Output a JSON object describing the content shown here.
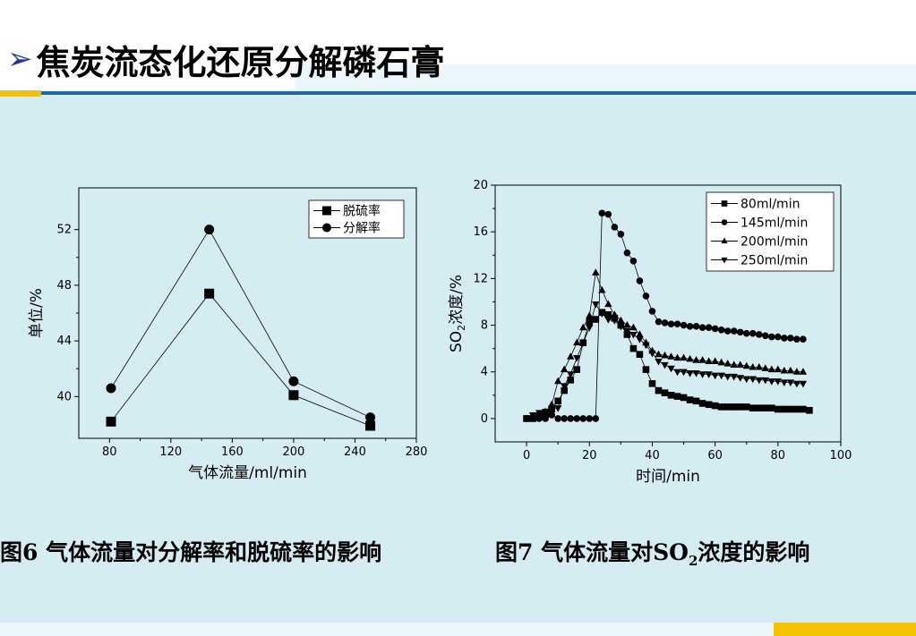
{
  "slide": {
    "title": "焦炭流态化还原分解磷石膏",
    "bullet": "➢"
  },
  "captions": {
    "fig6": "图6 气体流量对分解率和脱硫率的影响",
    "fig7_prefix": "图7 气体流量对SO",
    "fig7_sub": "2",
    "fig7_suffix": "浓度的影响"
  },
  "colors": {
    "background": "#d6ecf3",
    "accent_gold": "#f5c200",
    "accent_blue": "#1f6a9e",
    "series": "#000000"
  },
  "chart_data": [
    {
      "type": "line",
      "xlabel": "气体流量/ml/min",
      "ylabel": "单位/%",
      "xlim": [
        60,
        280
      ],
      "ylim": [
        37,
        55
      ],
      "xticks": [
        80,
        120,
        160,
        200,
        240,
        280
      ],
      "yticks": [
        40,
        44,
        48,
        52
      ],
      "legend_position": "top-right",
      "series": [
        {
          "name": "脱硫率",
          "marker": "square",
          "x": [
            81,
            145,
            200,
            250
          ],
          "y": [
            38.2,
            47.4,
            40.1,
            37.9
          ]
        },
        {
          "name": "分解率",
          "marker": "circle",
          "x": [
            81,
            145,
            200,
            250
          ],
          "y": [
            40.6,
            52.0,
            41.1,
            38.5
          ]
        }
      ]
    },
    {
      "type": "line",
      "xlabel": "时间/min",
      "ylabel_main": "SO",
      "ylabel_sub": "2",
      "ylabel_tail": "浓度/%",
      "xlim": [
        -10,
        100
      ],
      "ylim": [
        -2,
        20
      ],
      "xticks": [
        0,
        20,
        40,
        60,
        80,
        100
      ],
      "yticks": [
        0,
        4,
        8,
        12,
        16,
        20
      ],
      "legend_position": "top-right",
      "series": [
        {
          "name": "80ml/min",
          "marker": "square",
          "x": [
            0,
            2,
            4,
            6,
            8,
            10,
            12,
            14,
            16,
            18,
            20,
            22,
            24,
            26,
            28,
            30,
            32,
            34,
            36,
            38,
            40,
            42,
            44,
            46,
            48,
            50,
            52,
            54,
            56,
            58,
            60,
            62,
            64,
            66,
            68,
            70,
            72,
            74,
            76,
            78,
            80,
            82,
            84,
            86,
            88,
            90
          ],
          "y": [
            0,
            0,
            0.2,
            0.4,
            0.8,
            1.5,
            2.4,
            3.3,
            4.2,
            6.5,
            8.3,
            8.5,
            9.1,
            8.9,
            8.6,
            8.0,
            7.2,
            6.0,
            5.5,
            4.2,
            3.0,
            2.4,
            2.2,
            2.0,
            1.9,
            1.8,
            1.6,
            1.5,
            1.3,
            1.2,
            1.1,
            1.0,
            1.0,
            1.0,
            1.0,
            1.0,
            0.9,
            0.9,
            0.9,
            0.9,
            0.8,
            0.8,
            0.8,
            0.8,
            0.8,
            0.7
          ]
        },
        {
          "name": "145ml/min",
          "marker": "circle",
          "x": [
            0,
            2,
            4,
            6,
            8,
            10,
            12,
            14,
            16,
            18,
            20,
            22,
            24,
            26,
            28,
            30,
            32,
            34,
            36,
            38,
            40,
            42,
            44,
            46,
            48,
            50,
            52,
            54,
            56,
            58,
            60,
            62,
            64,
            66,
            68,
            70,
            72,
            74,
            76,
            78,
            80,
            82,
            84,
            86,
            88
          ],
          "y": [
            0,
            0,
            0,
            0,
            0.3,
            0,
            0,
            0,
            0,
            0,
            0,
            0,
            17.6,
            17.5,
            16.4,
            15.8,
            14.2,
            13.5,
            11.8,
            10.5,
            9.2,
            8.3,
            8.2,
            8.1,
            8.1,
            8.0,
            7.9,
            7.9,
            7.8,
            7.8,
            7.7,
            7.6,
            7.5,
            7.5,
            7.4,
            7.3,
            7.3,
            7.2,
            7.1,
            7.0,
            7.0,
            6.9,
            6.9,
            6.8,
            6.8
          ]
        },
        {
          "name": "200ml/min",
          "marker": "triangle-up",
          "x": [
            0,
            2,
            4,
            6,
            8,
            10,
            12,
            14,
            16,
            18,
            20,
            22,
            24,
            26,
            28,
            30,
            32,
            34,
            36,
            38,
            40,
            42,
            44,
            46,
            48,
            50,
            52,
            54,
            56,
            58,
            60,
            62,
            64,
            66,
            68,
            70,
            72,
            74,
            76,
            78,
            80,
            82,
            84,
            86,
            88
          ],
          "y": [
            0,
            0,
            0.3,
            0.6,
            1.2,
            3.2,
            4.2,
            5.3,
            6.5,
            7.8,
            8.8,
            12.5,
            11.0,
            9.8,
            8.9,
            8.4,
            8.0,
            7.8,
            7.2,
            6.5,
            5.8,
            5.5,
            5.4,
            5.3,
            5.2,
            5.2,
            5.1,
            5.0,
            5.0,
            4.9,
            4.9,
            4.8,
            4.7,
            4.6,
            4.6,
            4.5,
            4.4,
            4.4,
            4.3,
            4.2,
            4.2,
            4.1,
            4.1,
            4.0,
            4.0
          ]
        },
        {
          "name": "250ml/min",
          "marker": "triangle-down",
          "x": [
            0,
            2,
            4,
            6,
            8,
            10,
            12,
            14,
            16,
            18,
            20,
            22,
            24,
            26,
            28,
            30,
            32,
            34,
            36,
            38,
            40,
            42,
            44,
            46,
            48,
            50,
            52,
            54,
            56,
            58,
            60,
            62,
            64,
            66,
            68,
            70,
            72,
            74,
            76,
            78,
            80,
            82,
            84,
            86,
            88
          ],
          "y": [
            0,
            0.3,
            0.5,
            0.6,
            0.8,
            0.9,
            2.8,
            3.8,
            5.2,
            6.5,
            7.8,
            9.8,
            9.0,
            8.5,
            8.4,
            7.9,
            7.5,
            7.2,
            6.8,
            6.3,
            5.6,
            4.9,
            4.6,
            4.3,
            4.0,
            4.0,
            3.9,
            3.9,
            3.8,
            3.8,
            3.7,
            3.7,
            3.6,
            3.6,
            3.5,
            3.4,
            3.4,
            3.3,
            3.3,
            3.2,
            3.2,
            3.1,
            3.1,
            3.0,
            3.0
          ]
        }
      ]
    }
  ]
}
